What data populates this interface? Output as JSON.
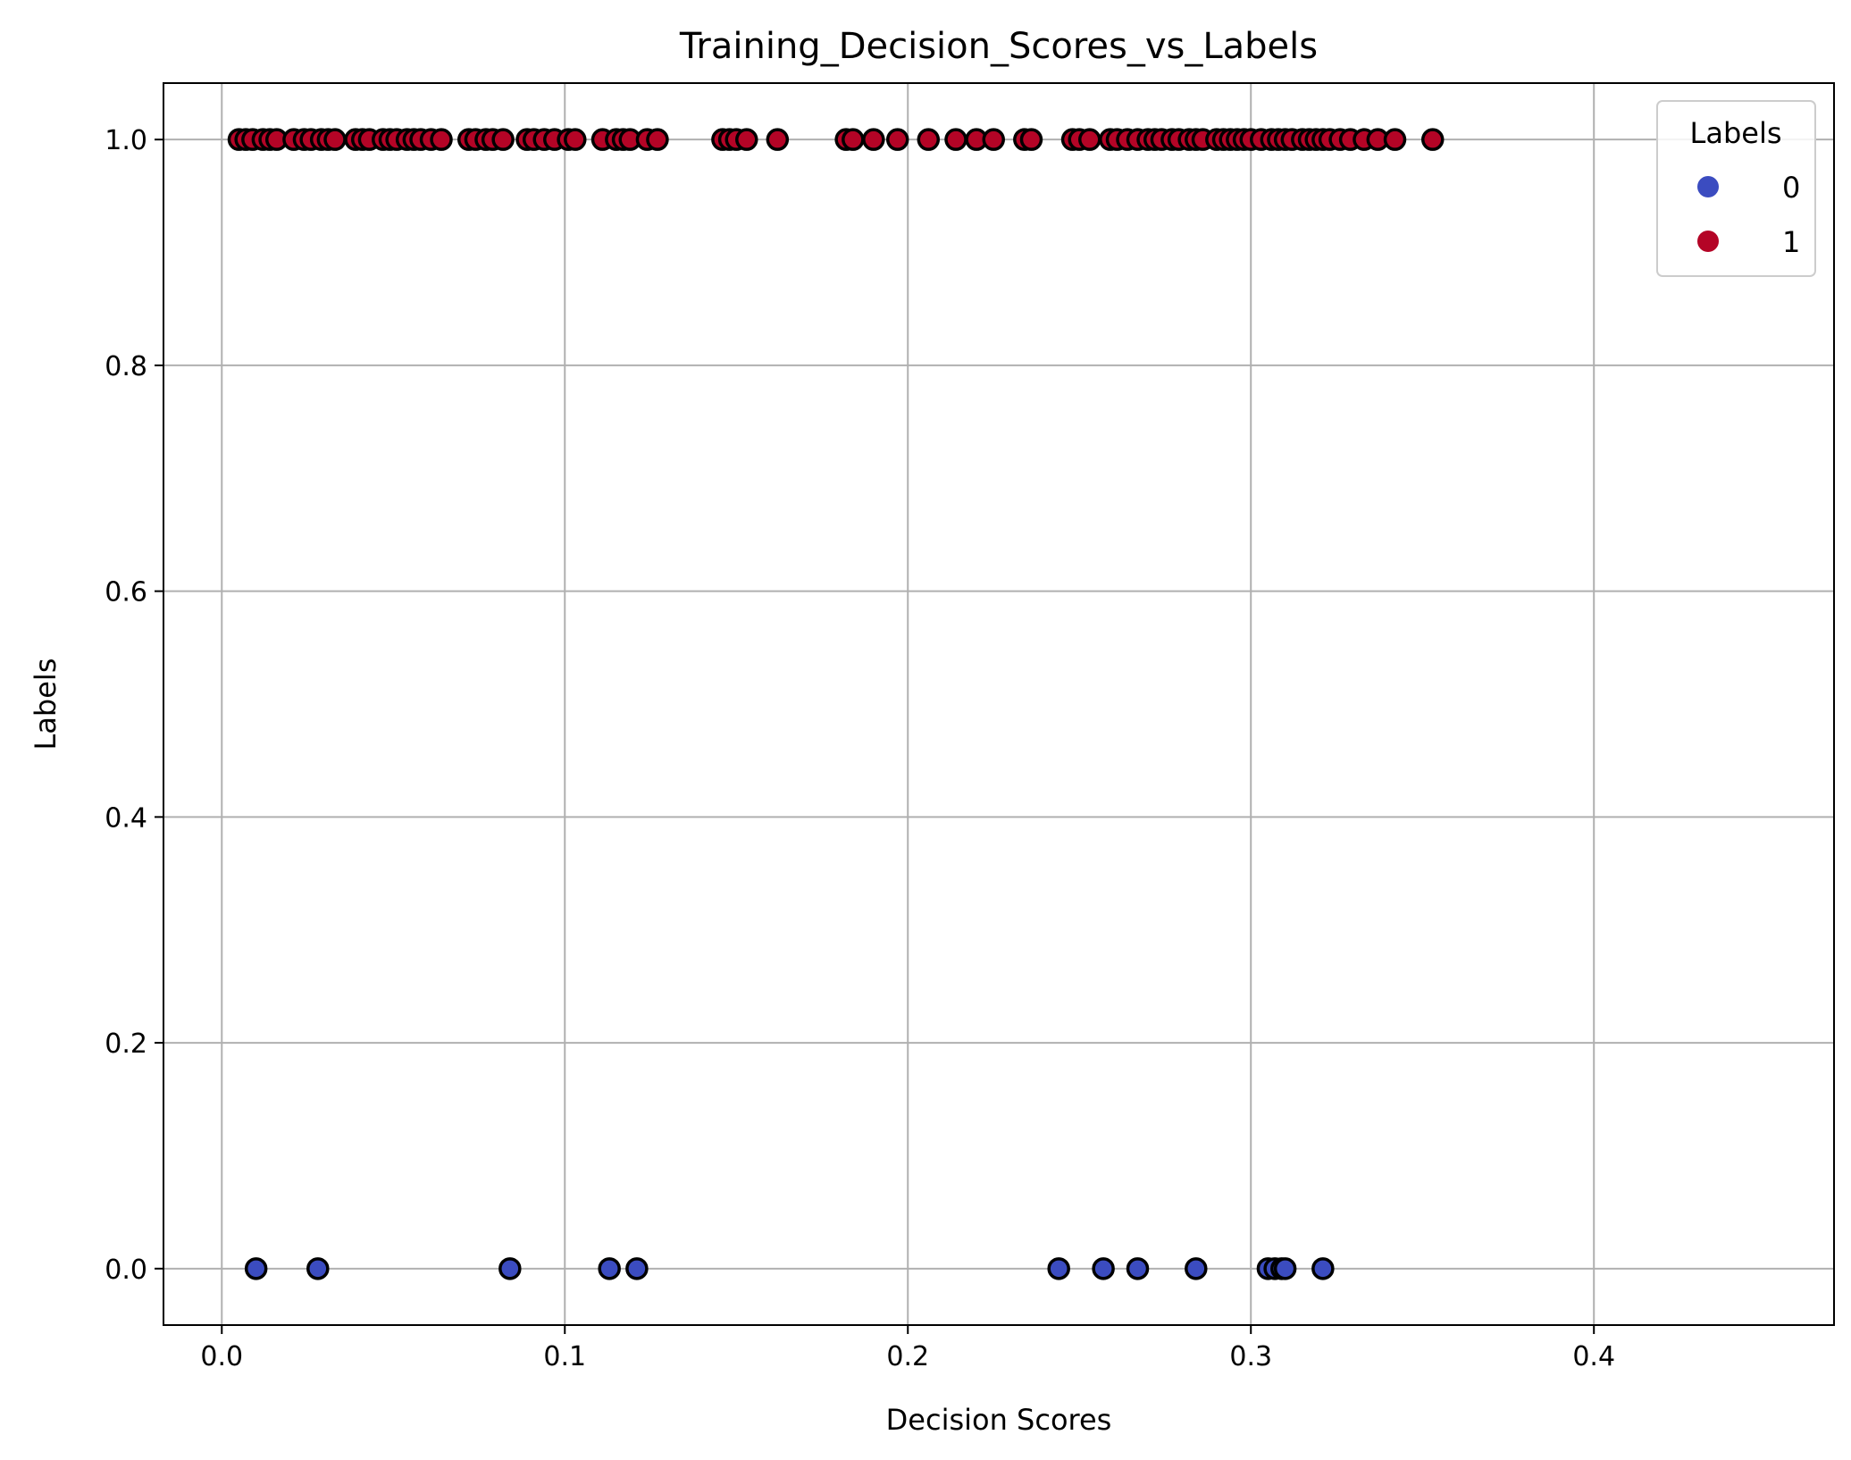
{
  "chart_data": {
    "type": "scatter",
    "title": "Training_Decision_Scores_vs_Labels",
    "xlabel": "Decision Scores",
    "ylabel": "Labels",
    "xlim": [
      -0.017,
      0.47
    ],
    "ylim": [
      -0.05,
      1.05
    ],
    "xticks": [
      0.0,
      0.1,
      0.2,
      0.3,
      0.4
    ],
    "xtick_labels": [
      "0.0",
      "0.1",
      "0.2",
      "0.3",
      "0.4"
    ],
    "yticks": [
      0.0,
      0.2,
      0.4,
      0.6,
      0.8,
      1.0
    ],
    "ytick_labels": [
      "0.0",
      "0.2",
      "0.4",
      "0.6",
      "0.8",
      "1.0"
    ],
    "grid": true,
    "legend": {
      "title": "Labels",
      "placement": "top-right",
      "entries": [
        {
          "label": "0",
          "color": "#3b4cc0"
        },
        {
          "label": "1",
          "color": "#b40426"
        }
      ]
    },
    "marker_edge_color": "#000000",
    "series": [
      {
        "name": "0",
        "color": "#3b4cc0",
        "x": [
          0.01,
          0.028,
          0.084,
          0.113,
          0.121,
          0.244,
          0.257,
          0.267,
          0.284,
          0.305,
          0.307,
          0.309,
          0.31,
          0.321
        ],
        "y": [
          0,
          0,
          0,
          0,
          0,
          0,
          0,
          0,
          0,
          0,
          0,
          0,
          0,
          0
        ]
      },
      {
        "name": "1",
        "color": "#b40426",
        "x": [
          0.005,
          0.007,
          0.009,
          0.012,
          0.014,
          0.016,
          0.021,
          0.024,
          0.026,
          0.029,
          0.031,
          0.033,
          0.039,
          0.041,
          0.043,
          0.047,
          0.049,
          0.051,
          0.054,
          0.056,
          0.058,
          0.061,
          0.064,
          0.072,
          0.074,
          0.077,
          0.079,
          0.082,
          0.089,
          0.091,
          0.094,
          0.097,
          0.101,
          0.103,
          0.111,
          0.115,
          0.117,
          0.119,
          0.124,
          0.127,
          0.146,
          0.148,
          0.15,
          0.153,
          0.162,
          0.182,
          0.184,
          0.19,
          0.197,
          0.206,
          0.214,
          0.22,
          0.225,
          0.234,
          0.236,
          0.248,
          0.25,
          0.253,
          0.259,
          0.261,
          0.264,
          0.267,
          0.27,
          0.272,
          0.274,
          0.277,
          0.279,
          0.282,
          0.284,
          0.286,
          0.29,
          0.292,
          0.294,
          0.296,
          0.298,
          0.3,
          0.303,
          0.306,
          0.308,
          0.31,
          0.312,
          0.315,
          0.317,
          0.319,
          0.321,
          0.323,
          0.326,
          0.329,
          0.333,
          0.337,
          0.342,
          0.353
        ],
        "y": [
          1,
          1,
          1,
          1,
          1,
          1,
          1,
          1,
          1,
          1,
          1,
          1,
          1,
          1,
          1,
          1,
          1,
          1,
          1,
          1,
          1,
          1,
          1,
          1,
          1,
          1,
          1,
          1,
          1,
          1,
          1,
          1,
          1,
          1,
          1,
          1,
          1,
          1,
          1,
          1,
          1,
          1,
          1,
          1,
          1,
          1,
          1,
          1,
          1,
          1,
          1,
          1,
          1,
          1,
          1,
          1,
          1,
          1,
          1,
          1,
          1,
          1,
          1,
          1,
          1,
          1,
          1,
          1,
          1,
          1,
          1,
          1,
          1,
          1,
          1,
          1,
          1,
          1,
          1,
          1,
          1,
          1,
          1,
          1,
          1,
          1,
          1,
          1,
          1,
          1,
          1,
          1
        ]
      }
    ]
  }
}
